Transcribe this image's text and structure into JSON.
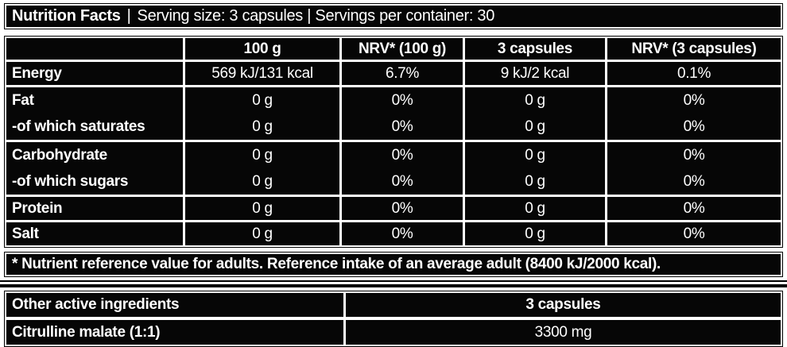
{
  "header_bar": {
    "title": "Nutrition Facts",
    "divider": "|",
    "info": "Serving size: 3 capsules | Servings per container: 30"
  },
  "colors": {
    "cell_bg": "#060606",
    "text": "#ffffff",
    "page_bg": "#ffffff",
    "rule": "#000000"
  },
  "nutrition_table": {
    "column_headers": [
      "",
      "100 g",
      "NRV* (100 g)",
      "3 capsules",
      "NRV* (3 capsules)"
    ],
    "row_groups": [
      {
        "rows": [
          {
            "label": "Energy",
            "values": [
              "569 kJ/131 kcal",
              "6.7%",
              "9 kJ/2 kcal",
              "0.1%"
            ]
          }
        ]
      },
      {
        "rows": [
          {
            "label": "Fat",
            "values": [
              "0 g",
              "0%",
              "0 g",
              "0%"
            ]
          },
          {
            "label": "-of which saturates",
            "values": [
              "0 g",
              "0%",
              "0 g",
              "0%"
            ]
          }
        ]
      },
      {
        "rows": [
          {
            "label": "Carbohydrate",
            "values": [
              "0 g",
              "0%",
              "0 g",
              "0%"
            ]
          },
          {
            "label": "-of which sugars",
            "values": [
              "0 g",
              "0%",
              "0 g",
              "0%"
            ]
          }
        ]
      },
      {
        "rows": [
          {
            "label": "Protein",
            "values": [
              "0 g",
              "0%",
              "0 g",
              "0%"
            ]
          }
        ]
      },
      {
        "rows": [
          {
            "label": "Salt",
            "values": [
              "0 g",
              "0%",
              "0 g",
              "0%"
            ]
          }
        ]
      }
    ]
  },
  "footnote": "* Nutrient reference value for adults. Reference intake of an average adult (8400 kJ/2000 kcal).",
  "other_ingredients": {
    "header": {
      "label": "Other active ingredients",
      "amount": "3 capsules"
    },
    "rows": [
      {
        "label": "Citrulline malate (1:1)",
        "amount": "3300 mg"
      }
    ]
  }
}
